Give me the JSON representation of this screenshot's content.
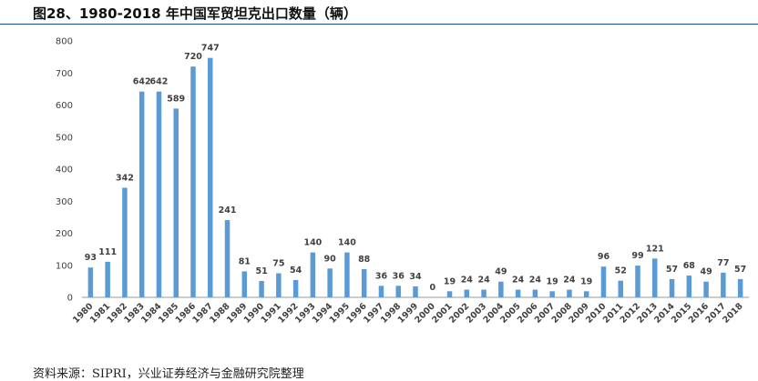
{
  "page": {
    "title": "图28、1980-2018 年中国军贸坦克出口数量（辆）",
    "source": "资料来源：SIPRI，兴业证券经济与金融研究院整理"
  },
  "colors": {
    "bar": "#5b9bd5",
    "axis": "#999999",
    "label": "#404040",
    "title_rule": "#1f4e8c"
  },
  "chart_data": {
    "type": "bar",
    "title": "图28、1980-2018 年中国军贸坦克出口数量（辆）",
    "xlabel": "",
    "ylabel": "",
    "ylim": [
      0,
      800
    ],
    "yticks": [
      0,
      100,
      200,
      300,
      400,
      500,
      600,
      700,
      800
    ],
    "grid": false,
    "categories": [
      "1980",
      "1981",
      "1982",
      "1983",
      "1984",
      "1985",
      "1986",
      "1987",
      "1988",
      "1989",
      "1990",
      "1991",
      "1992",
      "1993",
      "1994",
      "1995",
      "1996",
      "1997",
      "1998",
      "1999",
      "2000",
      "2001",
      "2002",
      "2003",
      "2004",
      "2005",
      "2006",
      "2007",
      "2008",
      "2009",
      "2010",
      "2011",
      "2012",
      "2013",
      "2014",
      "2015",
      "2016",
      "2017",
      "2018"
    ],
    "values": [
      93,
      111,
      342,
      642,
      642,
      589,
      720,
      747,
      241,
      81,
      51,
      75,
      54,
      140,
      90,
      140,
      88,
      36,
      36,
      34,
      0,
      19,
      24,
      24,
      49,
      24,
      24,
      19,
      24,
      19,
      96,
      52,
      99,
      121,
      57,
      68,
      49,
      77,
      57
    ]
  }
}
